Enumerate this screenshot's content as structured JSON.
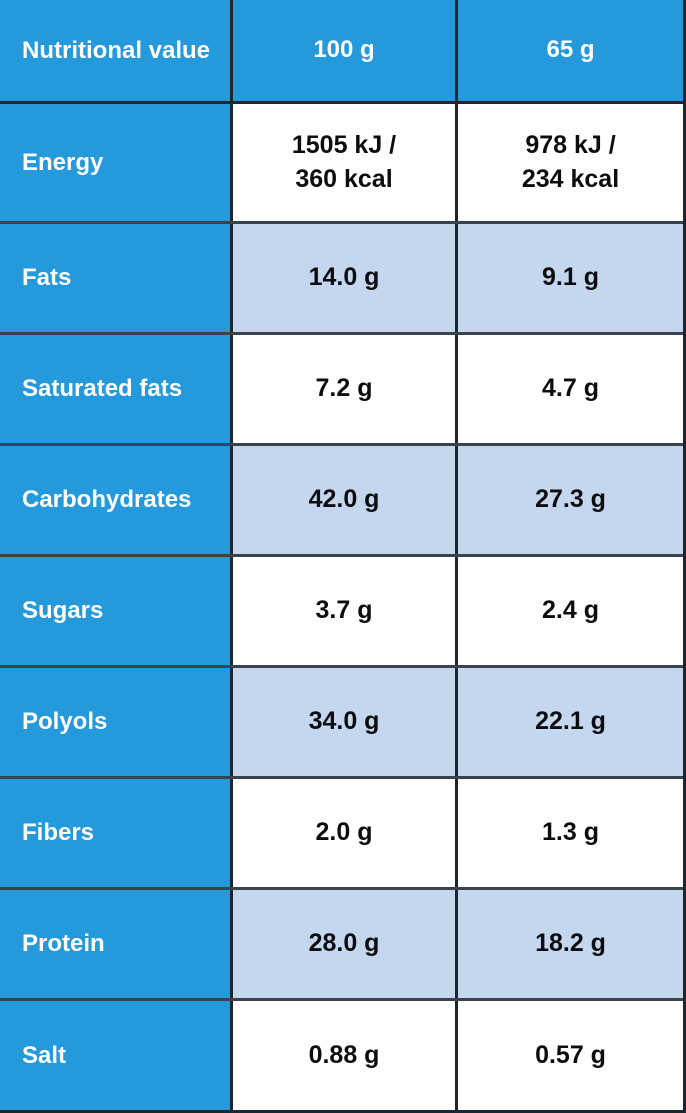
{
  "table": {
    "header": {
      "label": "Nutritional value",
      "col_100g": "100 g",
      "col_65g": "65 g"
    },
    "rows": [
      {
        "label": "Energy",
        "per_100g": "1505 kJ /\n360 kcal",
        "per_65g": "978 kJ /\n234 kcal",
        "shaded": false
      },
      {
        "label": "Fats",
        "per_100g": "14.0 g",
        "per_65g": "9.1 g",
        "shaded": true
      },
      {
        "label": "Saturated fats",
        "per_100g": "7.2 g",
        "per_65g": "4.7 g",
        "shaded": false
      },
      {
        "label": "Carbohydrates",
        "per_100g": "42.0 g",
        "per_65g": "27.3 g",
        "shaded": true
      },
      {
        "label": "Sugars",
        "per_100g": "3.7 g",
        "per_65g": "2.4 g",
        "shaded": false
      },
      {
        "label": "Polyols",
        "per_100g": "34.0 g",
        "per_65g": "22.1 g",
        "shaded": true
      },
      {
        "label": "Fibers",
        "per_100g": "2.0 g",
        "per_65g": "1.3 g",
        "shaded": false
      },
      {
        "label": "Protein",
        "per_100g": "28.0 g",
        "per_65g": "18.2 g",
        "shaded": true
      },
      {
        "label": "Salt",
        "per_100g": "0.88 g",
        "per_65g": "0.57 g",
        "shaded": false
      }
    ]
  },
  "colors": {
    "header_blue": "#2499db",
    "shaded_cell_blue": "#c4d7ef",
    "cell_white": "#ffffff",
    "grid_line_dark": "#1c262e",
    "grid_line_gray": "#39434b",
    "label_text": "#ffffff",
    "value_text": "#0d0d10"
  },
  "chart_data": {
    "type": "table",
    "title": "Nutritional value",
    "columns": [
      "Nutritional value",
      "100 g",
      "65 g"
    ],
    "rows": [
      [
        "Energy",
        "1505 kJ / 360 kcal",
        "978 kJ / 234 kcal"
      ],
      [
        "Fats",
        "14.0 g",
        "9.1 g"
      ],
      [
        "Saturated fats",
        "7.2 g",
        "4.7 g"
      ],
      [
        "Carbohydrates",
        "42.0 g",
        "27.3 g"
      ],
      [
        "Sugars",
        "3.7 g",
        "2.4 g"
      ],
      [
        "Polyols",
        "34.0 g",
        "22.1 g"
      ],
      [
        "Fibers",
        "2.0 g",
        "1.3 g"
      ],
      [
        "Protein",
        "28.0 g",
        "18.2 g"
      ],
      [
        "Salt",
        "0.88 g",
        "0.57 g"
      ]
    ]
  }
}
